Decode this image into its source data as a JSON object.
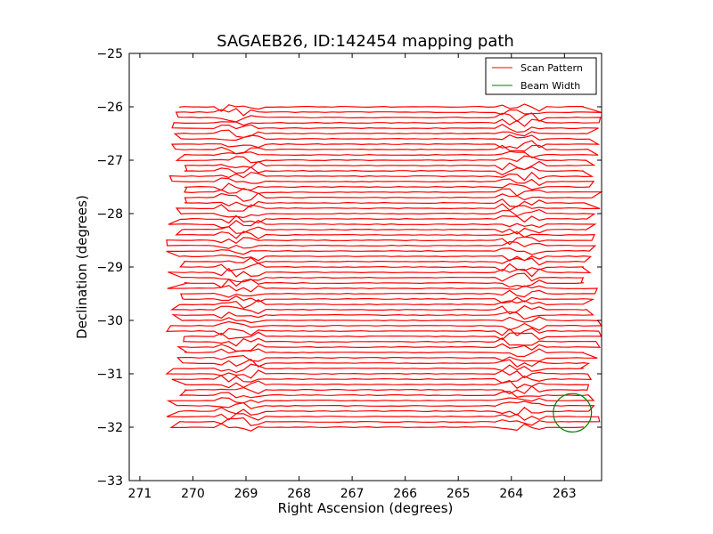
{
  "chart_data": {
    "type": "line",
    "title": "SAGAEB26, ID:142454 mapping path",
    "xlabel": "Right Ascension (degrees)",
    "ylabel": "Declination (degrees)",
    "xlim": [
      271.2,
      262.3
    ],
    "ylim": [
      -33,
      -25
    ],
    "x_ticks": [
      271,
      270,
      269,
      268,
      267,
      266,
      265,
      264,
      263
    ],
    "x_tick_labels": [
      "271",
      "270",
      "269",
      "268",
      "267",
      "266",
      "265",
      "264",
      "263"
    ],
    "y_ticks": [
      -25,
      -26,
      -27,
      -28,
      -29,
      -30,
      -31,
      -32,
      -33
    ],
    "y_tick_labels": [
      "−25",
      "−26",
      "−27",
      "−28",
      "−29",
      "−30",
      "−31",
      "−32",
      "−33"
    ],
    "legend": {
      "position": "top-right",
      "entries": [
        {
          "label": "Scan Pattern",
          "color": "#ff0000"
        },
        {
          "label": "Beam Width",
          "color": "#008000"
        }
      ]
    },
    "series": [
      {
        "name": "Scan Pattern",
        "color": "#ff0000",
        "pattern": "raster",
        "ra_start": 270.3,
        "ra_end": 262.5,
        "dec_start": -26.0,
        "dec_end": -32.0,
        "dec_step": 0.1
      },
      {
        "name": "Beam Width",
        "color": "#008000",
        "shape": "circle",
        "center_ra": 262.85,
        "center_dec": -31.73,
        "radius_deg": 0.36
      }
    ]
  }
}
